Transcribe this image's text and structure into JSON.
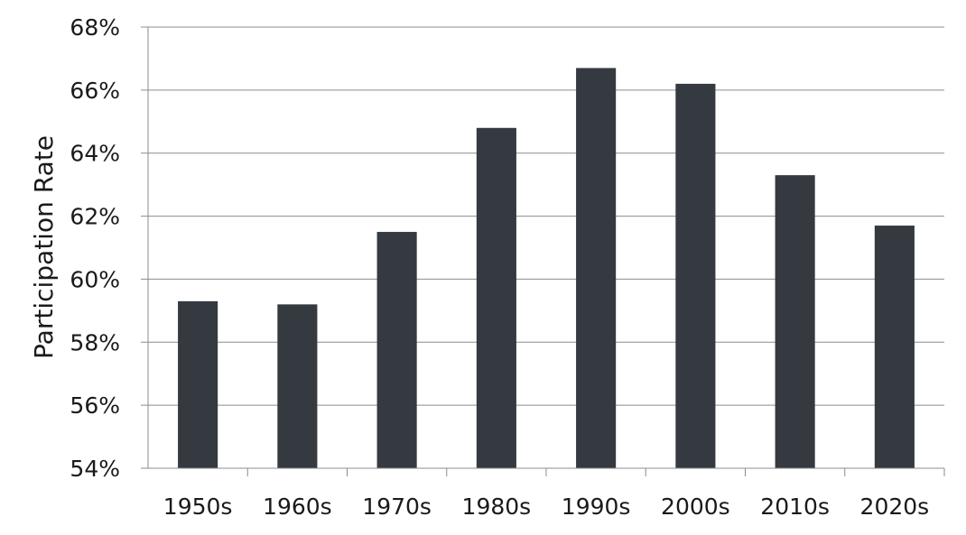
{
  "chart_data": {
    "type": "bar",
    "categories": [
      "1950s",
      "1960s",
      "1970s",
      "1980s",
      "1990s",
      "2000s",
      "2010s",
      "2020s"
    ],
    "values": [
      59.3,
      59.2,
      61.5,
      64.8,
      66.7,
      66.2,
      63.3,
      61.7
    ],
    "title": "",
    "xlabel": "",
    "ylabel": "Participation Rate",
    "ylim": [
      54,
      68
    ],
    "yticks": [
      "54%",
      "56%",
      "58%",
      "60%",
      "62%",
      "64%",
      "66%",
      "68%"
    ],
    "grid": true,
    "bar_color": "#343a40",
    "grid_color": "#8c8c8c"
  }
}
